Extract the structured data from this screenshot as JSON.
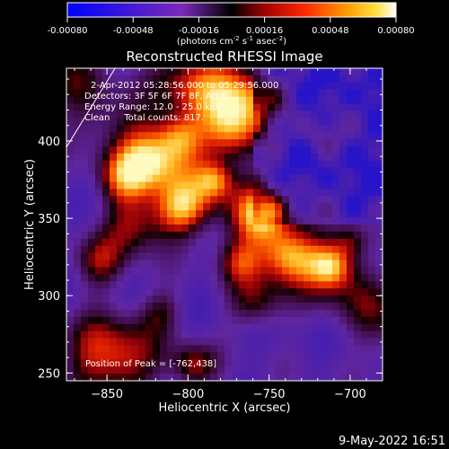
{
  "colorbar": {
    "ticks": [
      "-0.00080",
      "-0.00048",
      "-0.00016",
      "0.00016",
      "0.00048",
      "0.00080"
    ],
    "units_main": "(photons cm",
    "units_exp1": "-2",
    "units_mid1": " s",
    "units_exp2": "-1",
    "units_mid2": " asec",
    "units_exp3": "-2",
    "units_end": ")",
    "range": [
      -0.0008,
      0.0008
    ]
  },
  "chart_data": {
    "type": "heatmap",
    "title": "Reconstructed RHESSI Image",
    "xlabel": "Heliocentric X (arcsec)",
    "ylabel": "Heliocentric Y (arcsec)",
    "xlim": [
      -875,
      -680
    ],
    "ylim": [
      245,
      447
    ],
    "xticks": [
      -850,
      -800,
      -750,
      -700
    ],
    "yticks": [
      250,
      300,
      350,
      400
    ],
    "xtick_labels": [
      "−850",
      "−800",
      "−750",
      "−700"
    ],
    "ytick_labels": [
      "250",
      "300",
      "350",
      "400"
    ],
    "annotations": [
      "2-Apr-2012 05:28:56.000 to 05:29:56.000",
      "Detectors: 3F 5F 6F 7F 8F, Att 0",
      "Energy Range: 12.0 - 25.0 keV",
      "Clean     Total counts: 817."
    ],
    "peak_label": "Position of Peak = [-762,438]",
    "peak": [
      -762,
      438
    ],
    "limb_line": [
      [
        -875,
        396
      ],
      [
        -845,
        447
      ]
    ]
  },
  "footer": {
    "date": "9-May-2022 16:51"
  }
}
